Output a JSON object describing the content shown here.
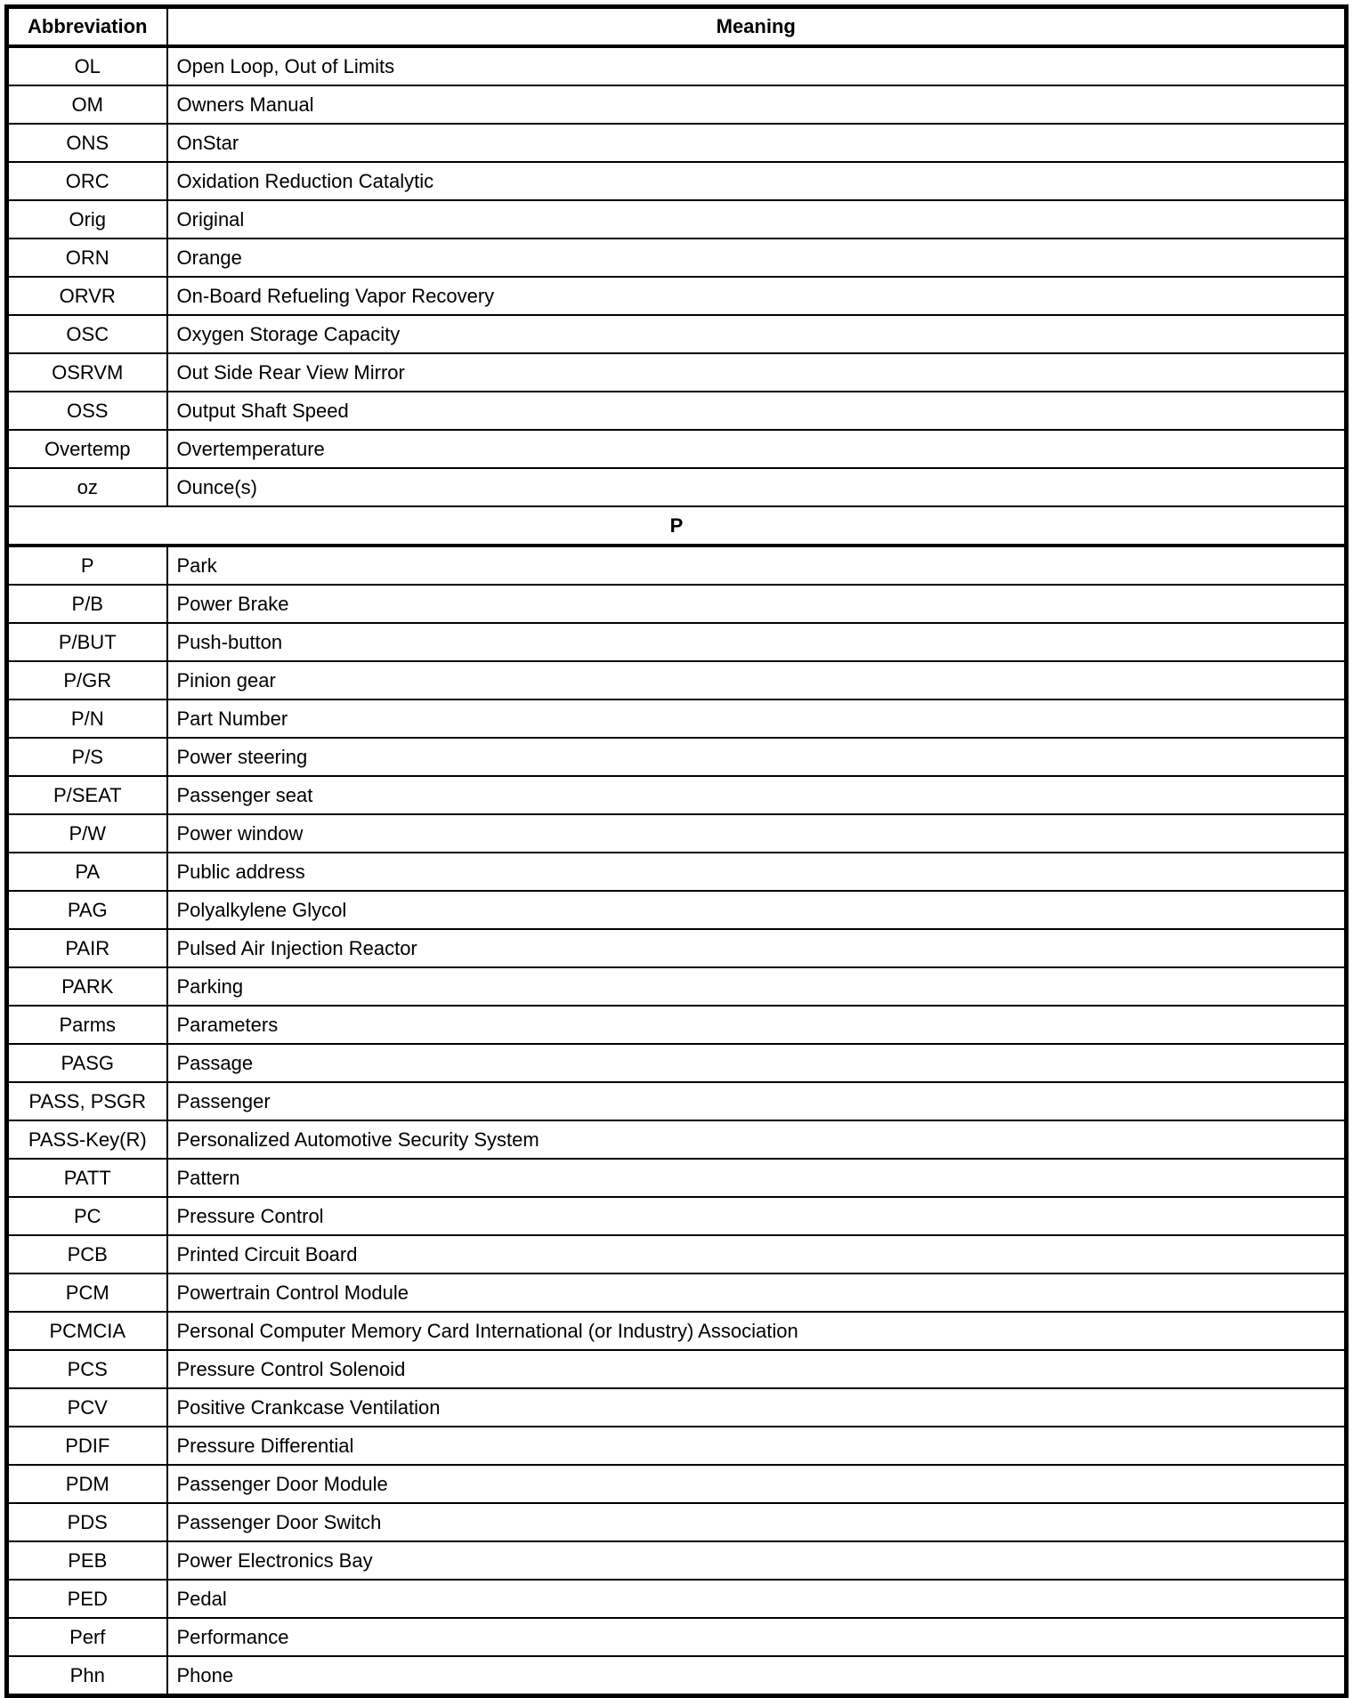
{
  "table": {
    "headers": [
      "Abbreviation",
      "Meaning"
    ],
    "rows": [
      {
        "abbr": "OL",
        "meaning": "Open Loop, Out of Limits"
      },
      {
        "abbr": "OM",
        "meaning": "Owners Manual"
      },
      {
        "abbr": "ONS",
        "meaning": "OnStar"
      },
      {
        "abbr": "ORC",
        "meaning": "Oxidation Reduction Catalytic"
      },
      {
        "abbr": "Orig",
        "meaning": "Original"
      },
      {
        "abbr": "ORN",
        "meaning": "Orange"
      },
      {
        "abbr": "ORVR",
        "meaning": "On-Board Refueling Vapor Recovery"
      },
      {
        "abbr": "OSC",
        "meaning": "Oxygen Storage Capacity"
      },
      {
        "abbr": "OSRVM",
        "meaning": "Out Side Rear View Mirror"
      },
      {
        "abbr": "OSS",
        "meaning": "Output Shaft Speed"
      },
      {
        "abbr": "Overtemp",
        "meaning": "Overtemperature"
      },
      {
        "abbr": "oz",
        "meaning": "Ounce(s)"
      },
      {
        "section": "P"
      },
      {
        "abbr": "P",
        "meaning": "Park"
      },
      {
        "abbr": "P/B",
        "meaning": "Power Brake"
      },
      {
        "abbr": "P/BUT",
        "meaning": "Push-button"
      },
      {
        "abbr": "P/GR",
        "meaning": "Pinion gear"
      },
      {
        "abbr": "P/N",
        "meaning": "Part Number"
      },
      {
        "abbr": "P/S",
        "meaning": "Power steering"
      },
      {
        "abbr": "P/SEAT",
        "meaning": "Passenger seat"
      },
      {
        "abbr": "P/W",
        "meaning": "Power window"
      },
      {
        "abbr": "PA",
        "meaning": "Public address"
      },
      {
        "abbr": "PAG",
        "meaning": "Polyalkylene Glycol"
      },
      {
        "abbr": "PAIR",
        "meaning": "Pulsed Air Injection Reactor"
      },
      {
        "abbr": "PARK",
        "meaning": "Parking"
      },
      {
        "abbr": "Parms",
        "meaning": "Parameters"
      },
      {
        "abbr": "PASG",
        "meaning": "Passage"
      },
      {
        "abbr": "PASS, PSGR",
        "meaning": "Passenger"
      },
      {
        "abbr": "PASS-Key(R)",
        "meaning": "Personalized Automotive Security System"
      },
      {
        "abbr": "PATT",
        "meaning": "Pattern"
      },
      {
        "abbr": "PC",
        "meaning": "Pressure Control"
      },
      {
        "abbr": "PCB",
        "meaning": "Printed Circuit Board"
      },
      {
        "abbr": "PCM",
        "meaning": "Powertrain Control Module"
      },
      {
        "abbr": "PCMCIA",
        "meaning": "Personal Computer Memory Card International (or Industry) Association"
      },
      {
        "abbr": "PCS",
        "meaning": "Pressure Control Solenoid"
      },
      {
        "abbr": "PCV",
        "meaning": "Positive Crankcase Ventilation"
      },
      {
        "abbr": "PDIF",
        "meaning": "Pressure Differential"
      },
      {
        "abbr": "PDM",
        "meaning": "Passenger Door Module"
      },
      {
        "abbr": "PDS",
        "meaning": "Passenger Door Switch"
      },
      {
        "abbr": "PEB",
        "meaning": "Power Electronics Bay"
      },
      {
        "abbr": "PED",
        "meaning": "Pedal"
      },
      {
        "abbr": "Perf",
        "meaning": "Performance"
      },
      {
        "abbr": "Phn",
        "meaning": "Phone"
      }
    ]
  }
}
